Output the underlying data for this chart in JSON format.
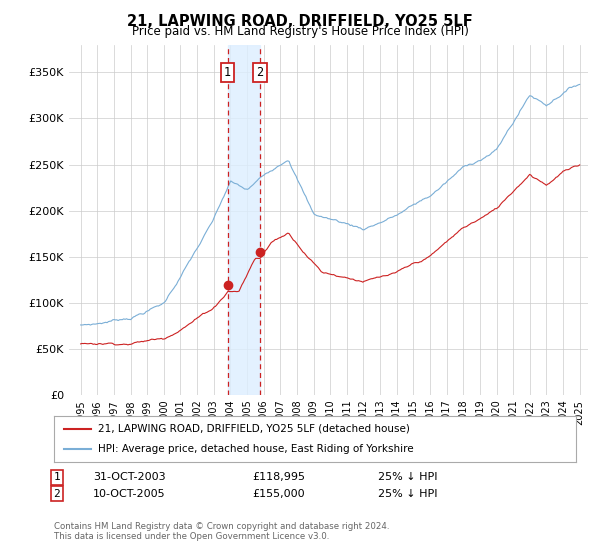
{
  "title": "21, LAPWING ROAD, DRIFFIELD, YO25 5LF",
  "subtitle": "Price paid vs. HM Land Registry's House Price Index (HPI)",
  "ylim": [
    0,
    380000
  ],
  "yticks": [
    0,
    50000,
    100000,
    150000,
    200000,
    250000,
    300000,
    350000
  ],
  "ytick_labels": [
    "£0",
    "£50K",
    "£100K",
    "£150K",
    "£200K",
    "£250K",
    "£300K",
    "£350K"
  ],
  "hpi_color": "#7aaed6",
  "price_color": "#cc2222",
  "annotation1_year": 2003.83,
  "annotation2_year": 2005.78,
  "annotation1_price": 118995,
  "annotation2_price": 155000,
  "annotation1_label": "1",
  "annotation2_label": "2",
  "annotation1_text": "31-OCT-2003",
  "annotation1_amount": "£118,995",
  "annotation1_hpi_pct": "25% ↓ HPI",
  "annotation2_text": "10-OCT-2005",
  "annotation2_amount": "£155,000",
  "annotation2_hpi_pct": "25% ↓ HPI",
  "legend_property_label": "21, LAPWING ROAD, DRIFFIELD, YO25 5LF (detached house)",
  "legend_hpi_label": "HPI: Average price, detached house, East Riding of Yorkshire",
  "footer": "Contains HM Land Registry data © Crown copyright and database right 2024.\nThis data is licensed under the Open Government Licence v3.0.",
  "bg_color": "#ffffff",
  "grid_color": "#cccccc",
  "span_color": "#ddeeff"
}
